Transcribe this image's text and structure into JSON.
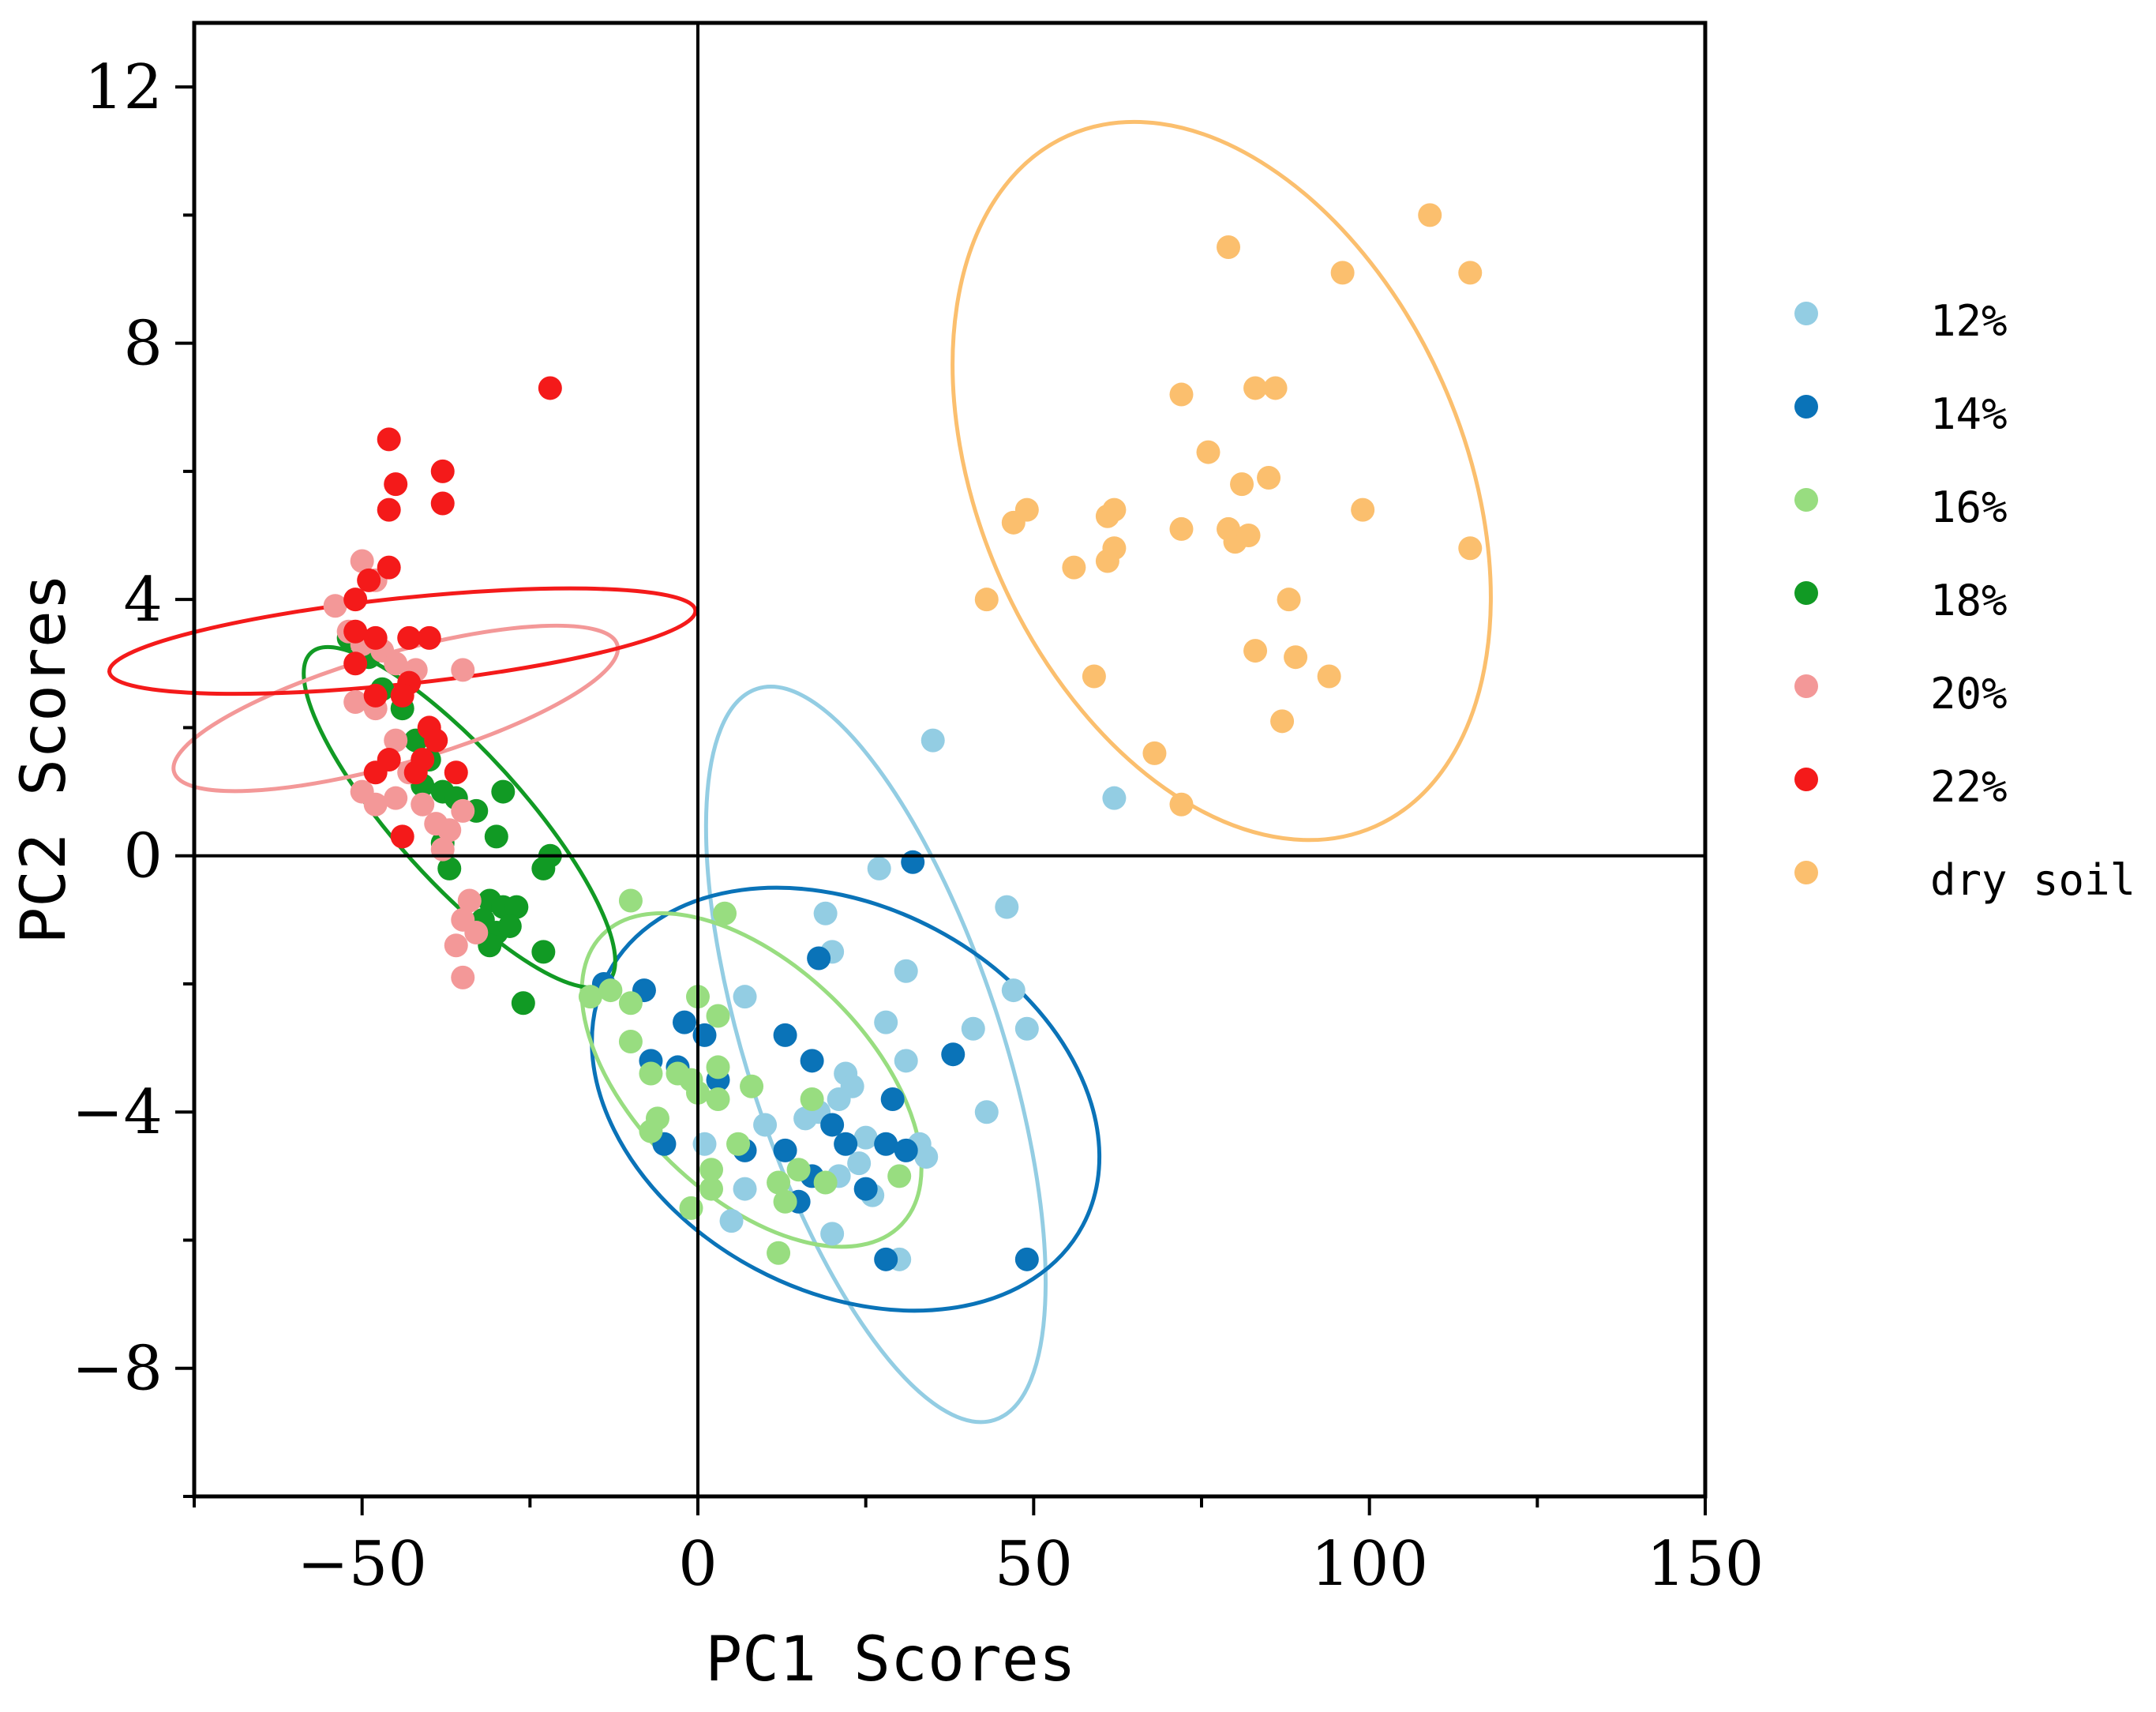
{
  "chart_data": {
    "type": "scatter",
    "title": "",
    "xlabel": "PC1 Scores",
    "ylabel": "PC2 Scores",
    "xlim": [
      -75,
      150
    ],
    "ylim": [
      -10,
      13
    ],
    "xticks": [
      -50,
      0,
      50,
      100,
      150
    ],
    "xtick_labels": [
      "−50",
      "0",
      "50",
      "100",
      "150"
    ],
    "yticks": [
      12,
      8,
      4,
      0,
      -4,
      -8
    ],
    "ytick_labels": [
      "12",
      "8",
      "4",
      "0",
      "−4",
      "−8"
    ],
    "reference_lines": {
      "x": 0,
      "y": 0
    },
    "grid": false,
    "legend_position": "right",
    "series": [
      {
        "name": "12%",
        "color": "#93cde3",
        "points": [
          [
            35,
            1.8
          ],
          [
            62,
            0.9
          ],
          [
            27,
            -0.2
          ],
          [
            46,
            -0.8
          ],
          [
            19,
            -0.9
          ],
          [
            20,
            -1.5
          ],
          [
            31,
            -1.8
          ],
          [
            7,
            -2.2
          ],
          [
            47,
            -2.1
          ],
          [
            28,
            -2.6
          ],
          [
            41,
            -2.7
          ],
          [
            49,
            -2.7
          ],
          [
            31,
            -3.2
          ],
          [
            22,
            -3.4
          ],
          [
            23,
            -3.6
          ],
          [
            21,
            -3.8
          ],
          [
            16,
            -4.1
          ],
          [
            18,
            -4.0
          ],
          [
            43,
            -4.0
          ],
          [
            10,
            -4.2
          ],
          [
            25,
            -4.4
          ],
          [
            33,
            -4.5
          ],
          [
            1,
            -4.5
          ],
          [
            24,
            -4.8
          ],
          [
            34,
            -4.7
          ],
          [
            21,
            -5.0
          ],
          [
            7,
            -5.2
          ],
          [
            26,
            -5.3
          ],
          [
            5,
            -5.7
          ],
          [
            20,
            -5.9
          ],
          [
            30,
            -6.3
          ]
        ]
      },
      {
        "name": "14%",
        "color": "#0a73b8",
        "points": [
          [
            32,
            -0.1
          ],
          [
            18,
            -1.6
          ],
          [
            -14,
            -2.0
          ],
          [
            -8,
            -2.1
          ],
          [
            -2,
            -2.6
          ],
          [
            1,
            -2.8
          ],
          [
            13,
            -2.8
          ],
          [
            17,
            -3.2
          ],
          [
            38,
            -3.1
          ],
          [
            -3,
            -3.3
          ],
          [
            -7,
            -3.2
          ],
          [
            3,
            -3.5
          ],
          [
            29,
            -3.8
          ],
          [
            -5,
            -4.5
          ],
          [
            20,
            -4.2
          ],
          [
            22,
            -4.5
          ],
          [
            28,
            -4.5
          ],
          [
            31,
            -4.6
          ],
          [
            7,
            -4.6
          ],
          [
            13,
            -4.6
          ],
          [
            17,
            -5.0
          ],
          [
            25,
            -5.2
          ],
          [
            15,
            -5.4
          ],
          [
            49,
            -6.3
          ],
          [
            28,
            -6.3
          ]
        ]
      },
      {
        "name": "16%",
        "color": "#98dd80",
        "points": [
          [
            -10,
            -0.7
          ],
          [
            4,
            -0.9
          ],
          [
            -13,
            -2.1
          ],
          [
            -16,
            -2.2
          ],
          [
            -10,
            -2.3
          ],
          [
            0,
            -2.2
          ],
          [
            3,
            -2.5
          ],
          [
            -10,
            -2.9
          ],
          [
            -7,
            -3.4
          ],
          [
            -3,
            -3.4
          ],
          [
            -1,
            -3.5
          ],
          [
            3,
            -3.3
          ],
          [
            0,
            -3.7
          ],
          [
            3,
            -3.8
          ],
          [
            8,
            -3.6
          ],
          [
            17,
            -3.8
          ],
          [
            -7,
            -4.3
          ],
          [
            -6,
            -4.1
          ],
          [
            6,
            -4.5
          ],
          [
            2,
            -4.9
          ],
          [
            2,
            -5.2
          ],
          [
            12,
            -5.1
          ],
          [
            15,
            -4.9
          ],
          [
            30,
            -5.0
          ],
          [
            19,
            -5.1
          ],
          [
            -1,
            -5.5
          ],
          [
            13,
            -5.4
          ],
          [
            12,
            -6.2
          ]
        ]
      },
      {
        "name": "18%",
        "color": "#119a24",
        "points": [
          [
            -52,
            3.4
          ],
          [
            -49,
            3.1
          ],
          [
            -47,
            2.6
          ],
          [
            -44,
            2.3
          ],
          [
            -42,
            1.8
          ],
          [
            -40,
            1.5
          ],
          [
            -41,
            1.1
          ],
          [
            -38,
            1.0
          ],
          [
            -36,
            0.9
          ],
          [
            -29,
            1.0
          ],
          [
            -33,
            0.7
          ],
          [
            -30,
            0.3
          ],
          [
            -38,
            0.2
          ],
          [
            -37,
            -0.2
          ],
          [
            -22,
            0.0
          ],
          [
            -23,
            -0.2
          ],
          [
            -31,
            -0.7
          ],
          [
            -29,
            -0.8
          ],
          [
            -27,
            -0.8
          ],
          [
            -32,
            -1.0
          ],
          [
            -30,
            -1.2
          ],
          [
            -28,
            -1.1
          ],
          [
            -31,
            -1.4
          ],
          [
            -23,
            -1.5
          ],
          [
            -26,
            -2.3
          ]
        ]
      },
      {
        "name": "20%",
        "color": "#f39898",
        "points": [
          [
            -54,
            3.9
          ],
          [
            -50,
            4.6
          ],
          [
            -48,
            4.3
          ],
          [
            -52,
            3.5
          ],
          [
            -50,
            3.3
          ],
          [
            -47,
            3.2
          ],
          [
            -45,
            3.0
          ],
          [
            -42,
            2.9
          ],
          [
            -35,
            2.9
          ],
          [
            -51,
            2.4
          ],
          [
            -48,
            2.3
          ],
          [
            -45,
            1.8
          ],
          [
            -43,
            1.3
          ],
          [
            -50,
            1.0
          ],
          [
            -48,
            0.8
          ],
          [
            -45,
            0.9
          ],
          [
            -41,
            0.8
          ],
          [
            -39,
            0.5
          ],
          [
            -35,
            0.7
          ],
          [
            -37,
            0.4
          ],
          [
            -38,
            0.1
          ],
          [
            -34,
            -0.7
          ],
          [
            -35,
            -1.0
          ],
          [
            -33,
            -1.2
          ],
          [
            -36,
            -1.4
          ],
          [
            -35,
            -1.9
          ]
        ]
      },
      {
        "name": "22%",
        "color": "#f41a1a",
        "points": [
          [
            -22,
            7.3
          ],
          [
            -46,
            6.5
          ],
          [
            -38,
            6.0
          ],
          [
            -45,
            5.8
          ],
          [
            -38,
            5.5
          ],
          [
            -46,
            5.4
          ],
          [
            -46,
            4.5
          ],
          [
            -49,
            4.3
          ],
          [
            -51,
            4.0
          ],
          [
            -51,
            3.5
          ],
          [
            -48,
            3.4
          ],
          [
            -43,
            3.4
          ],
          [
            -40,
            3.4
          ],
          [
            -51,
            3.0
          ],
          [
            -43,
            2.7
          ],
          [
            -44,
            2.5
          ],
          [
            -48,
            2.5
          ],
          [
            -40,
            2.0
          ],
          [
            -41,
            1.5
          ],
          [
            -39,
            1.8
          ],
          [
            -42,
            1.3
          ],
          [
            -46,
            1.5
          ],
          [
            -48,
            1.3
          ],
          [
            -36,
            1.3
          ],
          [
            -44,
            0.3
          ]
        ]
      },
      {
        "name": "dry soil",
        "color": "#fbbf6e",
        "points": [
          [
            109,
            10.0
          ],
          [
            115,
            9.1
          ],
          [
            79,
            9.5
          ],
          [
            96,
            9.1
          ],
          [
            83,
            7.3
          ],
          [
            86,
            7.3
          ],
          [
            72,
            7.2
          ],
          [
            76,
            6.3
          ],
          [
            81,
            5.8
          ],
          [
            85,
            5.9
          ],
          [
            61,
            5.3
          ],
          [
            62,
            5.4
          ],
          [
            99,
            5.4
          ],
          [
            49,
            5.4
          ],
          [
            47,
            5.2
          ],
          [
            72,
            5.1
          ],
          [
            79,
            5.1
          ],
          [
            80,
            4.9
          ],
          [
            82,
            5.0
          ],
          [
            62,
            4.8
          ],
          [
            61,
            4.6
          ],
          [
            56,
            4.5
          ],
          [
            115,
            4.8
          ],
          [
            43,
            4.0
          ],
          [
            88,
            4.0
          ],
          [
            83,
            3.2
          ],
          [
            89,
            3.1
          ],
          [
            94,
            2.8
          ],
          [
            59,
            2.8
          ],
          [
            87,
            2.1
          ],
          [
            68,
            1.6
          ],
          [
            72,
            0.8
          ]
        ]
      }
    ],
    "ellipses": [
      {
        "series": "dry soil",
        "cx": 78,
        "cy": 5.85,
        "rx": 36.0,
        "ry": 5.9,
        "angle": 24
      },
      {
        "series": "12%",
        "cx": 26.5,
        "cy": -3.1,
        "rx": 19.0,
        "ry": 6.0,
        "angle": 18
      },
      {
        "series": "14%",
        "cx": 22,
        "cy": -3.8,
        "rx": 40.0,
        "ry": 3.0,
        "angle": -28
      },
      {
        "series": "16%",
        "cx": 8,
        "cy": -3.5,
        "rx": 31.0,
        "ry": 1.8,
        "angle": -44
      },
      {
        "series": "18%",
        "cx": -35.5,
        "cy": 0.6,
        "rx": 33.0,
        "ry": 1.0,
        "angle": -48
      },
      {
        "series": "20%",
        "cx": -45,
        "cy": 2.3,
        "rx": 8.2,
        "ry": 3.6,
        "angle": -74
      },
      {
        "series": "22%",
        "cx": -44,
        "cy": 3.35,
        "rx": 6.4,
        "ry": 4.6,
        "angle": -84
      }
    ]
  }
}
